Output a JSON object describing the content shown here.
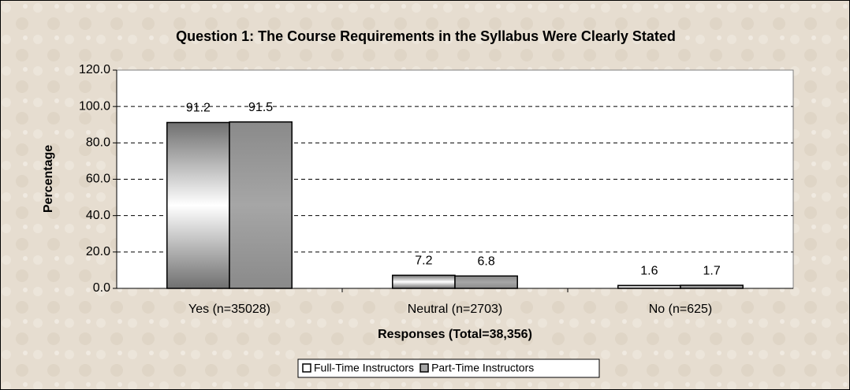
{
  "chart_data": {
    "type": "bar",
    "title": "Question 1:  The Course Requirements in the Syllabus Were Clearly Stated",
    "x_label": "Responses (Total=38,356)",
    "y_label": "Percentage",
    "categories": [
      "Yes (n=35028)",
      "Neutral (n=2703)",
      "No (n=625)"
    ],
    "series": [
      {
        "name": "Full-Time Instructors",
        "color": "#ffffff",
        "values": [
          91.2,
          7.2,
          1.6
        ]
      },
      {
        "name": "Part-Time Instructors",
        "color": "#a6a6a6",
        "values": [
          91.5,
          6.8,
          1.7
        ]
      }
    ],
    "ylim": [
      0,
      120
    ],
    "yticks": [
      {
        "value": 0,
        "label": "0.0"
      },
      {
        "value": 20,
        "label": "20.0"
      },
      {
        "value": 40,
        "label": "40.0"
      },
      {
        "value": 60,
        "label": "60.0"
      },
      {
        "value": 80,
        "label": "80.0"
      },
      {
        "value": 100,
        "label": "100.0"
      },
      {
        "value": 120,
        "label": "120.0"
      }
    ],
    "grid": true,
    "legend": "bottom"
  }
}
